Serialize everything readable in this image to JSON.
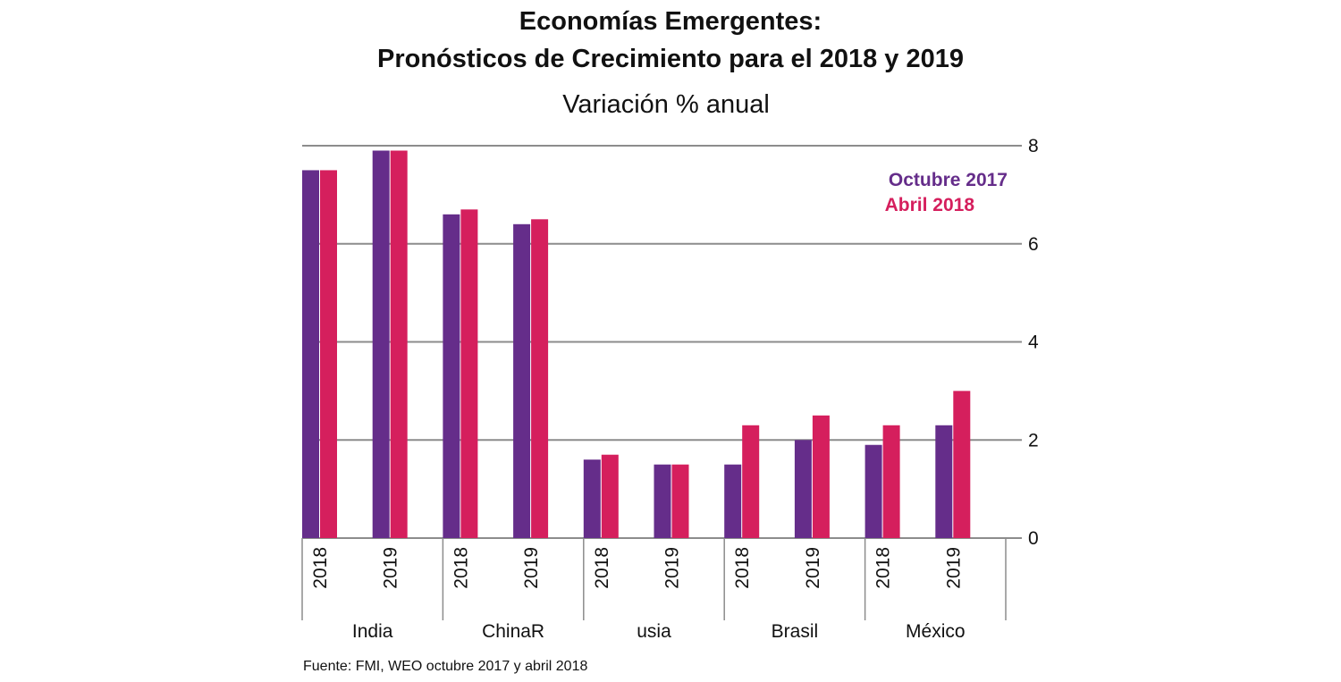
{
  "chart_data": {
    "type": "bar",
    "title": "Economías Emergentes:",
    "title_line2": "Pronósticos de Crecimiento para el 2018 y 2019",
    "subtitle": "Variación % anual",
    "xlabel": "",
    "ylabel": "",
    "ylim": [
      0,
      8
    ],
    "yticks": [
      0,
      2,
      4,
      6,
      8
    ],
    "ytick_labels": [
      "0",
      "2",
      "4",
      "6",
      "8"
    ],
    "y_axis_side": "right",
    "grid": true,
    "legend_position": "top-right",
    "groups": [
      "India",
      "ChinaR",
      "usia",
      "Brasil",
      "México"
    ],
    "categories": [
      "2018",
      "2019",
      "2018",
      "2019",
      "2018",
      "2019",
      "2018",
      "2019",
      "2018",
      "2019"
    ],
    "series": [
      {
        "name": "Octubre 2017",
        "color": "#652d8a",
        "values": [
          7.5,
          7.9,
          6.6,
          6.4,
          1.6,
          1.5,
          1.5,
          2.0,
          1.9,
          2.3
        ]
      },
      {
        "name": "Abril 2018",
        "color": "#d51f5d",
        "values": [
          7.5,
          7.9,
          6.7,
          6.5,
          1.7,
          1.5,
          2.3,
          2.5,
          2.3,
          3.0
        ]
      }
    ],
    "source": "Fuente: FMI, WEO octubre 2017 y abril 2018"
  }
}
